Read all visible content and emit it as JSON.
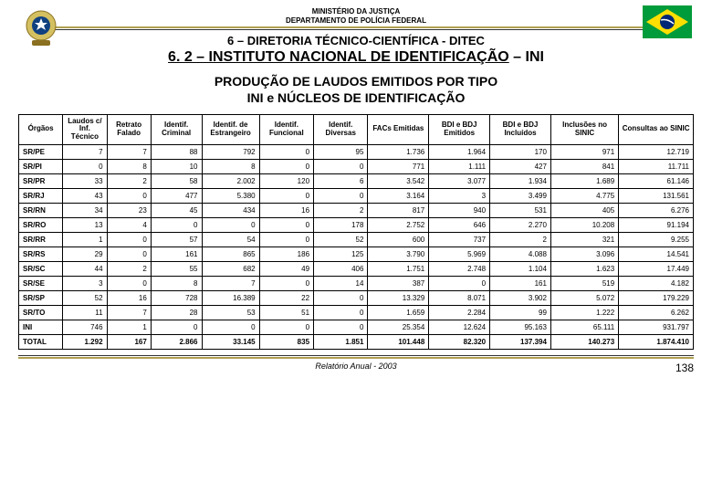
{
  "header": {
    "ministry": "MINISTÉRIO DA JUSTIÇA",
    "department": "DEPARTAMENTO DE POLÍCIA FEDERAL",
    "section": "6 – DIRETORIA TÉCNICO-CIENTÍFICA - DITEC",
    "subsection_prefix": "6. 2 – INSTITUTO NACIONAL DE IDENTIFICAÇÃO",
    "subsection_suffix": " – INI",
    "title_line1": "PRODUÇÃO DE LAUDOS EMITIDOS POR  TIPO",
    "title_line2": "INI e NÚCLEOS DE IDENTIFICAÇÃO"
  },
  "table": {
    "columns": [
      "Órgãos",
      "Laudos c/ Inf. Técnico",
      "Retrato Falado",
      "Identif. Criminal",
      "Identif. de Estrangeiro",
      "Identif. Funcional",
      "Identif. Diversas",
      "FACs Emitidas",
      "BDI e BDJ Emitidos",
      "BDI e BDJ Incluídos",
      "Inclusões no SINIC",
      "Consultas ao SINIC"
    ],
    "rows": [
      [
        "SR/PE",
        "7",
        "7",
        "88",
        "792",
        "0",
        "95",
        "1.736",
        "1.964",
        "170",
        "971",
        "12.719"
      ],
      [
        "SR/PI",
        "0",
        "8",
        "10",
        "8",
        "0",
        "0",
        "771",
        "1.111",
        "427",
        "841",
        "11.711"
      ],
      [
        "SR/PR",
        "33",
        "2",
        "58",
        "2.002",
        "120",
        "6",
        "3.542",
        "3.077",
        "1.934",
        "1.689",
        "61.146"
      ],
      [
        "SR/RJ",
        "43",
        "0",
        "477",
        "5.380",
        "0",
        "0",
        "3.164",
        "3",
        "3.499",
        "4.775",
        "131.561"
      ],
      [
        "SR/RN",
        "34",
        "23",
        "45",
        "434",
        "16",
        "2",
        "817",
        "940",
        "531",
        "405",
        "6.276"
      ],
      [
        "SR/RO",
        "13",
        "4",
        "0",
        "0",
        "0",
        "178",
        "2.752",
        "646",
        "2.270",
        "10.208",
        "91.194"
      ],
      [
        "SR/RR",
        "1",
        "0",
        "57",
        "54",
        "0",
        "52",
        "600",
        "737",
        "2",
        "321",
        "9.255"
      ],
      [
        "SR/RS",
        "29",
        "0",
        "161",
        "865",
        "186",
        "125",
        "3.790",
        "5.969",
        "4.088",
        "3.096",
        "14.541"
      ],
      [
        "SR/SC",
        "44",
        "2",
        "55",
        "682",
        "49",
        "406",
        "1.751",
        "2.748",
        "1.104",
        "1.623",
        "17.449"
      ],
      [
        "SR/SE",
        "3",
        "0",
        "8",
        "7",
        "0",
        "14",
        "387",
        "0",
        "161",
        "519",
        "4.182"
      ],
      [
        "SR/SP",
        "52",
        "16",
        "728",
        "16.389",
        "22",
        "0",
        "13.329",
        "8.071",
        "3.902",
        "5.072",
        "179.229"
      ],
      [
        "SR/TO",
        "11",
        "7",
        "28",
        "53",
        "51",
        "0",
        "1.659",
        "2.284",
        "99",
        "1.222",
        "6.262"
      ],
      [
        "INI",
        "746",
        "1",
        "0",
        "0",
        "0",
        "0",
        "25.354",
        "12.624",
        "95.163",
        "65.111",
        "931.797"
      ],
      [
        "TOTAL",
        "1.292",
        "167",
        "2.866",
        "33.145",
        "835",
        "1.851",
        "101.448",
        "82.320",
        "137.394",
        "140.273",
        "1.874.410"
      ]
    ]
  },
  "footer": {
    "report": "Relatório Anual - 2003",
    "page": "138"
  },
  "styling": {
    "accent_color": "#b0a050",
    "border_color": "#000000",
    "background_color": "#ffffff",
    "header_fontsize": 8,
    "section_fontsize": 13,
    "subsection_fontsize": 16,
    "title_fontsize": 14,
    "table_fontsize": 8,
    "footer_fontsize": 9
  }
}
